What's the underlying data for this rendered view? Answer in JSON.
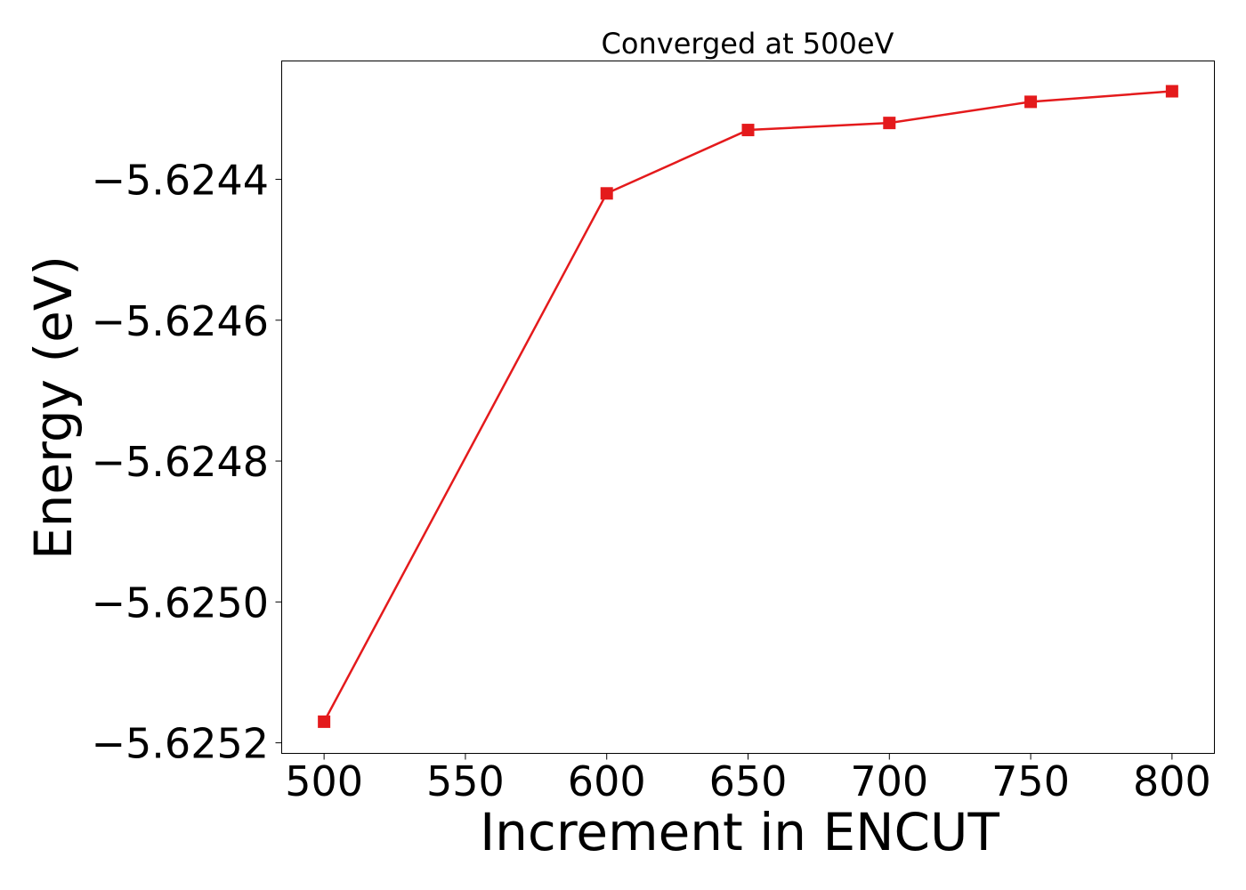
{
  "chart_data": {
    "type": "line",
    "title": "Converged at 500eV",
    "xlabel": "Increment in ENCUT",
    "ylabel": "Energy (eV)",
    "x": [
      500,
      600,
      650,
      700,
      750,
      800
    ],
    "series": [
      {
        "values": [
          -5.62517,
          -5.62442,
          -5.62433,
          -5.62432,
          -5.62429,
          -5.624275
        ],
        "color": "#e41a1c",
        "marker": "square"
      }
    ],
    "xlim": [
      485,
      815
    ],
    "ylim": [
      -5.625215,
      -5.624232
    ],
    "xticks": [
      500,
      550,
      600,
      650,
      700,
      750,
      800
    ],
    "xtick_labels": [
      "500",
      "550",
      "600",
      "650",
      "700",
      "750",
      "800"
    ],
    "yticks": [
      -5.6252,
      -5.625,
      -5.6248,
      -5.6246,
      -5.6244
    ],
    "ytick_labels": [
      "−5.6252",
      "−5.6250",
      "−5.6248",
      "−5.6246",
      "−5.6244"
    ],
    "grid": false,
    "legend": "none"
  }
}
